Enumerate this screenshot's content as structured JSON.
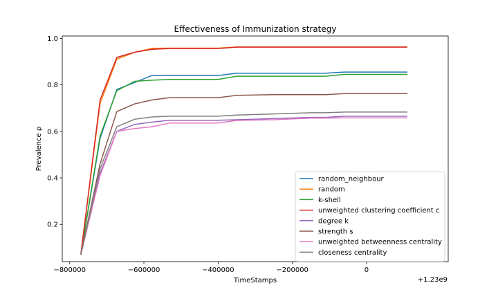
{
  "chart_data": {
    "type": "line",
    "title": "Effectiveness of Immunization strategy",
    "xlabel": "TimeStamps",
    "ylabel": "Prevalence ρ",
    "x_offset_label": "+1.23e9",
    "x_ticks": [
      -800000,
      -600000,
      -400000,
      -200000,
      0
    ],
    "x_tick_labels": [
      "−800000",
      "−600000",
      "−400000",
      "−200000",
      "0"
    ],
    "y_ticks": [
      0.2,
      0.4,
      0.6,
      0.8,
      1.0
    ],
    "y_tick_labels": [
      "0.2",
      "0.4",
      "0.6",
      "0.8",
      "1.0"
    ],
    "xlim": [
      -820000,
      220000
    ],
    "ylim": [
      0.04,
      1.01
    ],
    "grid": false,
    "legend_position": "lower-right",
    "x": [
      -770000,
      -718000,
      -673000,
      -625000,
      -578000,
      -530000,
      -400000,
      -350000,
      -250000,
      -150000,
      -110000,
      -60000,
      -10000,
      110000
    ],
    "series": [
      {
        "name": "random_neighbour",
        "color": "#1f77b4",
        "values": [
          0.07,
          0.57,
          0.78,
          0.81,
          0.84,
          0.84,
          0.84,
          0.85,
          0.85,
          0.85,
          0.85,
          0.855,
          0.855,
          0.855
        ]
      },
      {
        "name": "random",
        "color": "#ff7f0e",
        "values": [
          0.07,
          0.72,
          0.91,
          0.94,
          0.957,
          0.958,
          0.958,
          0.963,
          0.963,
          0.963,
          0.963,
          0.963,
          0.963,
          0.963
        ]
      },
      {
        "name": "k-shell",
        "color": "#2ca02c",
        "values": [
          0.07,
          0.58,
          0.775,
          0.815,
          0.82,
          0.823,
          0.823,
          0.837,
          0.837,
          0.837,
          0.837,
          0.845,
          0.845,
          0.845
        ]
      },
      {
        "name": "unweighted clustering coefficient c",
        "color": "#d62728",
        "values": [
          0.07,
          0.735,
          0.918,
          0.94,
          0.953,
          0.956,
          0.956,
          0.962,
          0.962,
          0.962,
          0.962,
          0.962,
          0.962,
          0.962
        ]
      },
      {
        "name": "degree k",
        "color": "#9467bd",
        "values": [
          0.07,
          0.42,
          0.6,
          0.63,
          0.64,
          0.648,
          0.648,
          0.65,
          0.655,
          0.66,
          0.66,
          0.665,
          0.665,
          0.665
        ]
      },
      {
        "name": "strength s",
        "color": "#8c564b",
        "values": [
          0.07,
          0.46,
          0.685,
          0.718,
          0.735,
          0.745,
          0.745,
          0.755,
          0.758,
          0.758,
          0.758,
          0.762,
          0.762,
          0.762
        ]
      },
      {
        "name": "unweighted betweenness centrality",
        "color": "#e377c2",
        "values": [
          0.07,
          0.41,
          0.6,
          0.612,
          0.62,
          0.636,
          0.636,
          0.647,
          0.65,
          0.657,
          0.657,
          0.658,
          0.658,
          0.658
        ]
      },
      {
        "name": "closeness centrality",
        "color": "#7f7f7f",
        "values": [
          0.07,
          0.44,
          0.62,
          0.652,
          0.662,
          0.665,
          0.665,
          0.67,
          0.675,
          0.68,
          0.68,
          0.683,
          0.683,
          0.683
        ]
      }
    ]
  }
}
